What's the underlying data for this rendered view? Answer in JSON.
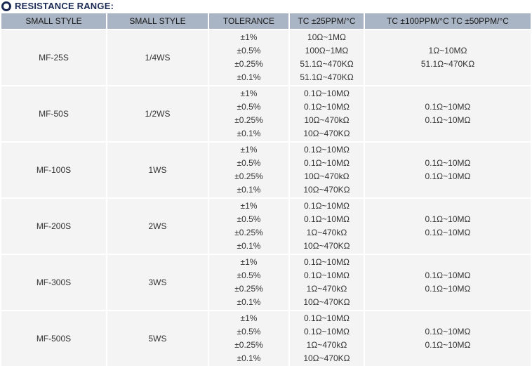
{
  "page": {
    "title": "RESISTANCE RANGE:",
    "title_color": "#1b2a55"
  },
  "table": {
    "header_bg": "#a9b4c4",
    "row_bg": "#f4f4f4",
    "columns": [
      "SMALL STYLE",
      "SMALL STYLE",
      "TOLERANCE",
      "TC ±25PPM/°C",
      "TC ±100PPM/°C TC ±50PPM/°C"
    ],
    "rows": [
      {
        "style": "MF-25S",
        "watt": "1/4WS",
        "tolerances": [
          "±1%",
          "±0.5%",
          "±0.25%",
          "±0.1%"
        ],
        "tc25": [
          "10Ω~1MΩ",
          "100Ω~1MΩ",
          "51.1Ω~470KΩ",
          "51.1Ω~470KΩ"
        ],
        "tc100_50": [
          "1Ω~10MΩ",
          "51.1Ω~470KΩ"
        ]
      },
      {
        "style": "MF-50S",
        "watt": "1/2WS",
        "tolerances": [
          "±1%",
          "±0.5%",
          "±0.25%",
          "±0.1%"
        ],
        "tc25": [
          "0.1Ω~10MΩ",
          "0.1Ω~10MΩ",
          "10Ω~470kΩ",
          "10Ω~470KΩ"
        ],
        "tc100_50": [
          "0.1Ω~10MΩ",
          "0.1Ω~10MΩ"
        ]
      },
      {
        "style": "MF-100S",
        "watt": "1WS",
        "tolerances": [
          "±1%",
          "±0.5%",
          "±0.25%",
          "±0.1%"
        ],
        "tc25": [
          "0.1Ω~10MΩ",
          "0.1Ω~10MΩ",
          "10Ω~470kΩ",
          "10Ω~470KΩ"
        ],
        "tc100_50": [
          "0.1Ω~10MΩ",
          "0.1Ω~10MΩ"
        ]
      },
      {
        "style": "MF-200S",
        "watt": "2WS",
        "tolerances": [
          "±1%",
          "±0.5%",
          "±0.25%",
          "±0.1%"
        ],
        "tc25": [
          "0.1Ω~10MΩ",
          "0.1Ω~10MΩ",
          "1Ω~470kΩ",
          "10Ω~470KΩ"
        ],
        "tc100_50": [
          "0.1Ω~10MΩ",
          "0.1Ω~10MΩ"
        ]
      },
      {
        "style": "MF-300S",
        "watt": "3WS",
        "tolerances": [
          "±1%",
          "±0.5%",
          "±0.25%",
          "±0.1%"
        ],
        "tc25": [
          "0.1Ω~10MΩ",
          "0.1Ω~10MΩ",
          "1Ω~470kΩ",
          "10Ω~470KΩ"
        ],
        "tc100_50": [
          "0.1Ω~10MΩ",
          "0.1Ω~10MΩ"
        ]
      },
      {
        "style": "MF-500S",
        "watt": "5WS",
        "tolerances": [
          "±1%",
          "±0.5%",
          "±0.25%",
          "±0.1%"
        ],
        "tc25": [
          "0.1Ω~10MΩ",
          "0.1Ω~10MΩ",
          "1Ω~470kΩ",
          "10Ω~470KΩ"
        ],
        "tc100_50": [
          "0.1Ω~10MΩ",
          "0.1Ω~10MΩ"
        ]
      }
    ]
  }
}
